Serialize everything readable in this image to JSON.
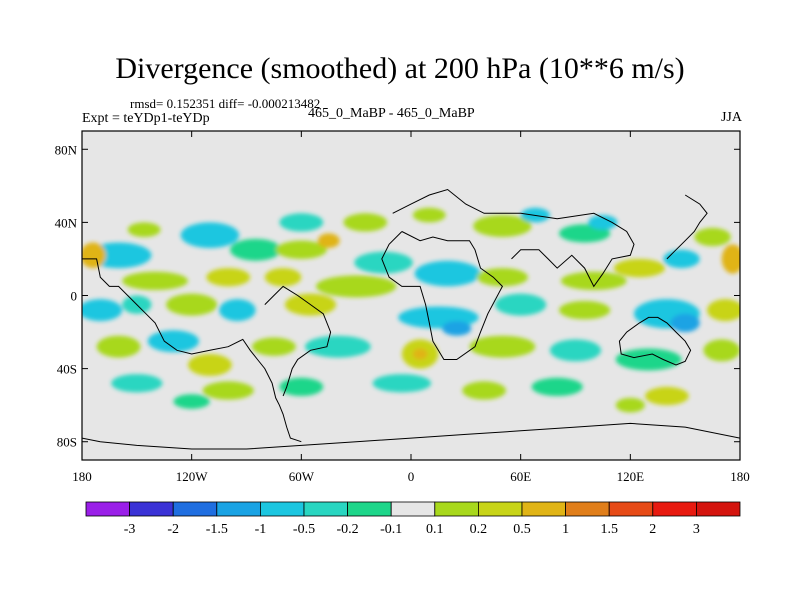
{
  "chart_data": {
    "type": "heatmap",
    "title": "Divergence (smoothed) at 200 hPa (10**6 m/s)",
    "stats_text": "rmsd= 0.152351  diff= -0.000213482",
    "left_label": "Expt = teYDp1-teYDp",
    "center_label": "465_0_MaBP - 465_0_MaBP",
    "right_label": "JJA",
    "x_range": [
      -180,
      180
    ],
    "y_range": [
      -90,
      90
    ],
    "x_ticks": [
      {
        "value": -180,
        "label": "180"
      },
      {
        "value": -120,
        "label": "120W"
      },
      {
        "value": -60,
        "label": "60W"
      },
      {
        "value": 0,
        "label": "0"
      },
      {
        "value": 60,
        "label": "60E"
      },
      {
        "value": 120,
        "label": "120E"
      },
      {
        "value": 180,
        "label": "180"
      }
    ],
    "y_ticks": [
      {
        "value": 80,
        "label": "80N"
      },
      {
        "value": 40,
        "label": "40N"
      },
      {
        "value": 0,
        "label": "0"
      },
      {
        "value": -40,
        "label": "40S"
      },
      {
        "value": -80,
        "label": "80S"
      }
    ],
    "colorbar": {
      "levels": [
        "-3",
        "-2",
        "-1.5",
        "-1",
        "-0.5",
        "-0.2",
        "-0.1",
        "0.1",
        "0.2",
        "0.5",
        "1",
        "1.5",
        "2",
        "3"
      ],
      "colors": [
        "#9a1fe8",
        "#3b32d6",
        "#1f6ee0",
        "#1aa3e4",
        "#1cc6e0",
        "#29d6c1",
        "#1ed68a",
        "#e6e6e6",
        "#a8d81c",
        "#c8d418",
        "#e0b416",
        "#e07e1a",
        "#e64a16",
        "#e81a10",
        "#d4140e"
      ]
    },
    "background_color": "#e6e6e6",
    "field_blobs": [
      {
        "lon": -160,
        "lat": 22,
        "rx": 18,
        "ry": 7,
        "color": "#1cc6e0"
      },
      {
        "lon": -174,
        "lat": 22,
        "rx": 7,
        "ry": 7,
        "color": "#e0b416"
      },
      {
        "lon": -146,
        "lat": 36,
        "rx": 9,
        "ry": 4,
        "color": "#a8d81c"
      },
      {
        "lon": -110,
        "lat": 33,
        "rx": 16,
        "ry": 7,
        "color": "#1cc6e0"
      },
      {
        "lon": -85,
        "lat": 25,
        "rx": 14,
        "ry": 6,
        "color": "#1ed68a"
      },
      {
        "lon": -60,
        "lat": 40,
        "rx": 12,
        "ry": 5,
        "color": "#29d6c1"
      },
      {
        "lon": -60,
        "lat": 25,
        "rx": 14,
        "ry": 5,
        "color": "#a8d81c"
      },
      {
        "lon": -45,
        "lat": 30,
        "rx": 6,
        "ry": 4,
        "color": "#e0b416"
      },
      {
        "lon": -25,
        "lat": 40,
        "rx": 12,
        "ry": 5,
        "color": "#a8d81c"
      },
      {
        "lon": -15,
        "lat": 18,
        "rx": 16,
        "ry": 6,
        "color": "#29d6c1"
      },
      {
        "lon": 10,
        "lat": 44,
        "rx": 9,
        "ry": 4,
        "color": "#a8d81c"
      },
      {
        "lon": 50,
        "lat": 38,
        "rx": 16,
        "ry": 6,
        "color": "#a8d81c"
      },
      {
        "lon": 68,
        "lat": 44,
        "rx": 8,
        "ry": 4,
        "color": "#1cc6e0"
      },
      {
        "lon": 95,
        "lat": 34,
        "rx": 14,
        "ry": 5,
        "color": "#1ed68a"
      },
      {
        "lon": 105,
        "lat": 40,
        "rx": 8,
        "ry": 4,
        "color": "#1cc6e0"
      },
      {
        "lon": 165,
        "lat": 32,
        "rx": 10,
        "ry": 5,
        "color": "#a8d81c"
      },
      {
        "lon": 148,
        "lat": 20,
        "rx": 10,
        "ry": 5,
        "color": "#1cc6e0"
      },
      {
        "lon": 176,
        "lat": 20,
        "rx": 6,
        "ry": 8,
        "color": "#e0b416"
      },
      {
        "lon": -140,
        "lat": 8,
        "rx": 18,
        "ry": 5,
        "color": "#a8d81c"
      },
      {
        "lon": -100,
        "lat": 10,
        "rx": 12,
        "ry": 5,
        "color": "#c8d418"
      },
      {
        "lon": -70,
        "lat": 10,
        "rx": 10,
        "ry": 5,
        "color": "#c8d418"
      },
      {
        "lon": -30,
        "lat": 5,
        "rx": 22,
        "ry": 6,
        "color": "#a8d81c"
      },
      {
        "lon": 20,
        "lat": 12,
        "rx": 18,
        "ry": 7,
        "color": "#1cc6e0"
      },
      {
        "lon": 50,
        "lat": 10,
        "rx": 14,
        "ry": 5,
        "color": "#a8d81c"
      },
      {
        "lon": 100,
        "lat": 8,
        "rx": 18,
        "ry": 5,
        "color": "#a8d81c"
      },
      {
        "lon": 125,
        "lat": 15,
        "rx": 14,
        "ry": 5,
        "color": "#c8d418"
      },
      {
        "lon": -170,
        "lat": -8,
        "rx": 12,
        "ry": 6,
        "color": "#1cc6e0"
      },
      {
        "lon": -150,
        "lat": -5,
        "rx": 8,
        "ry": 5,
        "color": "#29d6c1"
      },
      {
        "lon": -120,
        "lat": -5,
        "rx": 14,
        "ry": 6,
        "color": "#a8d81c"
      },
      {
        "lon": -95,
        "lat": -8,
        "rx": 10,
        "ry": 6,
        "color": "#1cc6e0"
      },
      {
        "lon": -55,
        "lat": -5,
        "rx": 14,
        "ry": 6,
        "color": "#c8d418"
      },
      {
        "lon": 15,
        "lat": -12,
        "rx": 22,
        "ry": 6,
        "color": "#1cc6e0"
      },
      {
        "lon": 25,
        "lat": -18,
        "rx": 8,
        "ry": 4,
        "color": "#1aa3e4"
      },
      {
        "lon": 60,
        "lat": -5,
        "rx": 14,
        "ry": 6,
        "color": "#29d6c1"
      },
      {
        "lon": 95,
        "lat": -8,
        "rx": 14,
        "ry": 5,
        "color": "#a8d81c"
      },
      {
        "lon": 140,
        "lat": -10,
        "rx": 18,
        "ry": 8,
        "color": "#1cc6e0"
      },
      {
        "lon": 150,
        "lat": -15,
        "rx": 8,
        "ry": 5,
        "color": "#1aa3e4"
      },
      {
        "lon": 172,
        "lat": -8,
        "rx": 10,
        "ry": 6,
        "color": "#c8d418"
      },
      {
        "lon": -160,
        "lat": -28,
        "rx": 12,
        "ry": 6,
        "color": "#a8d81c"
      },
      {
        "lon": -130,
        "lat": -25,
        "rx": 14,
        "ry": 6,
        "color": "#1cc6e0"
      },
      {
        "lon": -110,
        "lat": -38,
        "rx": 12,
        "ry": 6,
        "color": "#c8d418"
      },
      {
        "lon": -75,
        "lat": -28,
        "rx": 12,
        "ry": 5,
        "color": "#a8d81c"
      },
      {
        "lon": -40,
        "lat": -28,
        "rx": 18,
        "ry": 6,
        "color": "#29d6c1"
      },
      {
        "lon": 5,
        "lat": -32,
        "rx": 10,
        "ry": 8,
        "color": "#c8d418"
      },
      {
        "lon": 5,
        "lat": -32,
        "rx": 4,
        "ry": 3,
        "color": "#e0b416"
      },
      {
        "lon": 50,
        "lat": -28,
        "rx": 18,
        "ry": 6,
        "color": "#a8d81c"
      },
      {
        "lon": 90,
        "lat": -30,
        "rx": 14,
        "ry": 6,
        "color": "#29d6c1"
      },
      {
        "lon": 130,
        "lat": -35,
        "rx": 18,
        "ry": 6,
        "color": "#1ed68a"
      },
      {
        "lon": 170,
        "lat": -30,
        "rx": 10,
        "ry": 6,
        "color": "#a8d81c"
      },
      {
        "lon": -150,
        "lat": -48,
        "rx": 14,
        "ry": 5,
        "color": "#29d6c1"
      },
      {
        "lon": -100,
        "lat": -52,
        "rx": 14,
        "ry": 5,
        "color": "#a8d81c"
      },
      {
        "lon": -60,
        "lat": -50,
        "rx": 12,
        "ry": 5,
        "color": "#1ed68a"
      },
      {
        "lon": -5,
        "lat": -48,
        "rx": 16,
        "ry": 5,
        "color": "#29d6c1"
      },
      {
        "lon": 40,
        "lat": -52,
        "rx": 12,
        "ry": 5,
        "color": "#a8d81c"
      },
      {
        "lon": 80,
        "lat": -50,
        "rx": 14,
        "ry": 5,
        "color": "#1ed68a"
      },
      {
        "lon": 140,
        "lat": -55,
        "rx": 12,
        "ry": 5,
        "color": "#c8d418"
      },
      {
        "lon": -120,
        "lat": -58,
        "rx": 10,
        "ry": 4,
        "color": "#1ed68a"
      },
      {
        "lon": 120,
        "lat": -60,
        "rx": 8,
        "ry": 4,
        "color": "#a8d81c"
      }
    ],
    "coastlines": [
      [
        [
          -180,
          20
        ],
        [
          -172,
          20
        ],
        [
          -170,
          10
        ],
        [
          -165,
          5
        ],
        [
          -160,
          5
        ],
        [
          -155,
          0
        ],
        [
          -150,
          -5
        ],
        [
          -145,
          -10
        ],
        [
          -140,
          -15
        ],
        [
          -135,
          -25
        ],
        [
          -128,
          -30
        ],
        [
          -120,
          -32
        ],
        [
          -110,
          -30
        ],
        [
          -100,
          -28
        ],
        [
          -92,
          -24
        ],
        [
          -88,
          -30
        ],
        [
          -84,
          -35
        ],
        [
          -80,
          -40
        ],
        [
          -76,
          -48
        ],
        [
          -74,
          -56
        ],
        [
          -72,
          -60
        ],
        [
          -70,
          -65
        ],
        [
          -68,
          -72
        ],
        [
          -66,
          -78
        ],
        [
          -60,
          -80
        ]
      ],
      [
        [
          -80,
          -5
        ],
        [
          -75,
          0
        ],
        [
          -70,
          5
        ],
        [
          -62,
          0
        ],
        [
          -55,
          -5
        ],
        [
          -48,
          -10
        ],
        [
          -44,
          -20
        ],
        [
          -46,
          -28
        ],
        [
          -55,
          -30
        ],
        [
          -62,
          -35
        ],
        [
          -65,
          -40
        ],
        [
          -68,
          -50
        ],
        [
          -70,
          -55
        ]
      ],
      [
        [
          -5,
          35
        ],
        [
          5,
          30
        ],
        [
          12,
          32
        ],
        [
          20,
          30
        ],
        [
          32,
          30
        ],
        [
          35,
          25
        ],
        [
          38,
          15
        ],
        [
          45,
          10
        ],
        [
          50,
          5
        ],
        [
          42,
          -10
        ],
        [
          38,
          -20
        ],
        [
          35,
          -28
        ],
        [
          25,
          -35
        ],
        [
          18,
          -35
        ],
        [
          12,
          -25
        ],
        [
          10,
          -15
        ],
        [
          8,
          -5
        ],
        [
          5,
          5
        ],
        [
          -5,
          5
        ],
        [
          -12,
          10
        ],
        [
          -16,
          20
        ],
        [
          -12,
          28
        ],
        [
          -5,
          35
        ]
      ],
      [
        [
          -10,
          45
        ],
        [
          0,
          50
        ],
        [
          10,
          55
        ],
        [
          20,
          58
        ],
        [
          30,
          50
        ],
        [
          40,
          45
        ],
        [
          60,
          45
        ],
        [
          80,
          42
        ],
        [
          100,
          45
        ],
        [
          110,
          40
        ],
        [
          118,
          35
        ],
        [
          122,
          28
        ],
        [
          120,
          22
        ],
        [
          110,
          20
        ],
        [
          105,
          12
        ],
        [
          100,
          5
        ],
        [
          95,
          15
        ],
        [
          88,
          22
        ],
        [
          80,
          15
        ],
        [
          75,
          20
        ],
        [
          70,
          25
        ],
        [
          60,
          25
        ],
        [
          55,
          20
        ]
      ],
      [
        [
          125,
          -15
        ],
        [
          130,
          -12
        ],
        [
          135,
          -12
        ],
        [
          140,
          -15
        ],
        [
          145,
          -20
        ],
        [
          150,
          -25
        ],
        [
          153,
          -30
        ],
        [
          150,
          -36
        ],
        [
          145,
          -38
        ],
        [
          138,
          -35
        ],
        [
          132,
          -32
        ],
        [
          122,
          -34
        ],
        [
          115,
          -32
        ],
        [
          114,
          -25
        ],
        [
          118,
          -20
        ],
        [
          125,
          -15
        ]
      ],
      [
        [
          150,
          55
        ],
        [
          158,
          50
        ],
        [
          162,
          45
        ],
        [
          158,
          40
        ],
        [
          155,
          35
        ],
        [
          150,
          30
        ],
        [
          145,
          25
        ],
        [
          140,
          20
        ]
      ],
      [
        [
          -180,
          -78
        ],
        [
          -170,
          -80
        ],
        [
          -150,
          -82
        ],
        [
          -120,
          -84
        ],
        [
          -90,
          -84
        ],
        [
          -60,
          -82
        ],
        [
          -30,
          -80
        ],
        [
          0,
          -78
        ],
        [
          30,
          -76
        ],
        [
          60,
          -74
        ],
        [
          90,
          -72
        ],
        [
          120,
          -70
        ],
        [
          150,
          -72
        ],
        [
          180,
          -78
        ]
      ]
    ]
  }
}
